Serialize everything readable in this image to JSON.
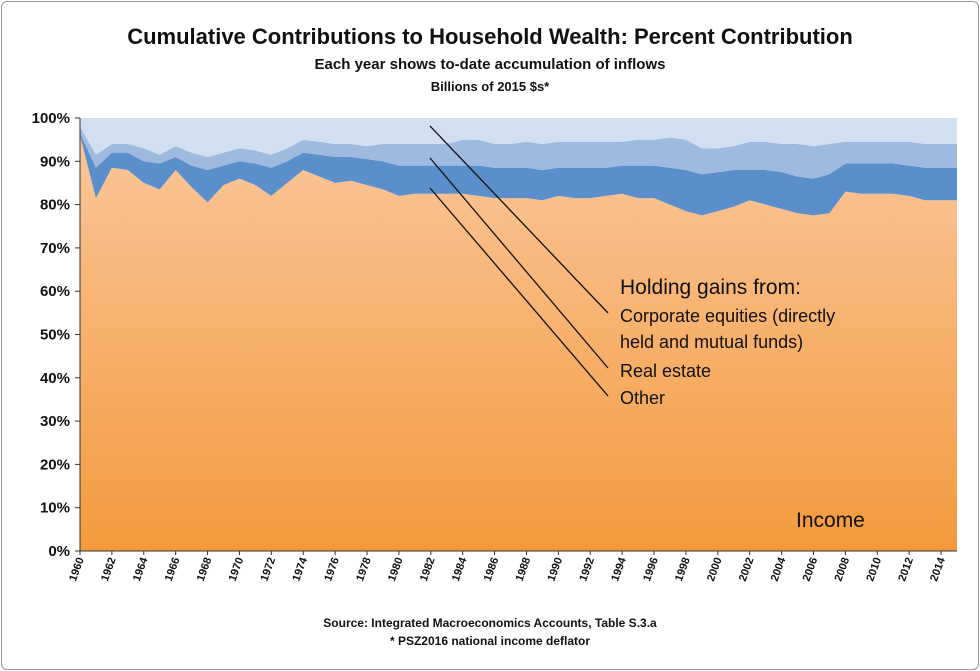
{
  "chart_data": {
    "type": "area",
    "stacked": true,
    "percent": true,
    "title": "Cumulative Contributions to Household Wealth: Percent Contribution",
    "subtitle": "Each year shows to-date accumulation of inflows",
    "subtitle2": "Billions of 2015 $s*",
    "source": "Source: Integrated Macroeconomics Accounts, Table S.3.a",
    "footnote": "* PSZ2016 national income deflator",
    "ylim": [
      0,
      100
    ],
    "y_ticks": [
      "0%",
      "10%",
      "20%",
      "30%",
      "40%",
      "50%",
      "60%",
      "70%",
      "80%",
      "90%",
      "100%"
    ],
    "x_tick_labels": [
      "1960",
      "1962",
      "1964",
      "1966",
      "1968",
      "1970",
      "1972",
      "1974",
      "1976",
      "1978",
      "1980",
      "1982",
      "1984",
      "1986",
      "1988",
      "1990",
      "1992",
      "1994",
      "1996",
      "1998",
      "2000",
      "2002",
      "2004",
      "2006",
      "2008",
      "2010",
      "2012",
      "2014"
    ],
    "x": [
      1960,
      1961,
      1962,
      1963,
      1964,
      1965,
      1966,
      1967,
      1968,
      1969,
      1970,
      1971,
      1972,
      1973,
      1974,
      1975,
      1976,
      1977,
      1978,
      1979,
      1980,
      1981,
      1982,
      1983,
      1984,
      1985,
      1986,
      1987,
      1988,
      1989,
      1990,
      1991,
      1992,
      1993,
      1994,
      1995,
      1996,
      1997,
      1998,
      1999,
      2000,
      2001,
      2002,
      2003,
      2004,
      2005,
      2006,
      2007,
      2008,
      2009,
      2010,
      2011,
      2012,
      2013,
      2014,
      2015
    ],
    "series": [
      {
        "name": "Income",
        "color": "#f5a04e",
        "values": [
          96,
          81.5,
          88.5,
          88,
          85,
          83.5,
          88,
          84,
          80.5,
          84.5,
          86,
          84.5,
          82,
          85,
          88,
          86.5,
          85,
          85.5,
          84.5,
          83.5,
          82,
          82.5,
          82.5,
          82.5,
          82.5,
          82,
          81.5,
          81.5,
          81.5,
          81,
          82,
          81.5,
          81.5,
          82,
          82.5,
          81.5,
          81.5,
          80,
          78.5,
          77.5,
          78.5,
          79.5,
          81,
          80,
          79,
          78,
          77.5,
          78,
          83,
          82.5,
          82.5,
          82.5,
          82,
          81,
          81,
          81
        ]
      },
      {
        "name": "Other",
        "color": "#5b8fcc",
        "values": [
          0.5,
          7,
          3.5,
          4,
          5,
          6,
          3,
          5,
          7.5,
          4.5,
          4,
          5,
          6.5,
          5,
          4,
          5,
          6,
          5.5,
          6,
          6.5,
          7,
          6.5,
          6.5,
          6.5,
          6.5,
          7,
          7,
          7,
          7,
          7,
          6.5,
          7,
          7,
          6.5,
          6.5,
          7.5,
          7.5,
          8.5,
          9.5,
          9.5,
          9,
          8.5,
          7,
          8,
          8.5,
          8.5,
          8.5,
          9,
          6.5,
          7,
          7,
          7,
          7,
          7.5,
          7.5,
          7.5
        ]
      },
      {
        "name": "Real estate",
        "color": "#9fbadf",
        "values": [
          1.5,
          3,
          2,
          2,
          3,
          2,
          2.5,
          3,
          3,
          3,
          3,
          3,
          3,
          3,
          3,
          3,
          3,
          3,
          3,
          4,
          5,
          5,
          5,
          5,
          6,
          6,
          5.5,
          5.5,
          6,
          6,
          6,
          6,
          6,
          6,
          5.5,
          6,
          6,
          7,
          7,
          6,
          5.5,
          5.5,
          6.5,
          6.5,
          6.5,
          7.5,
          7.5,
          7,
          5,
          5,
          5,
          5,
          5.5,
          5.5,
          5.5,
          5.5
        ]
      },
      {
        "name": "Corporate equities (directly held and mutual funds)",
        "color": "#d1dff0",
        "values": [
          2,
          8.5,
          6,
          6,
          7,
          8.5,
          6.5,
          8,
          9,
          8,
          7,
          7.5,
          8.5,
          7,
          5,
          5.5,
          6,
          6,
          6.5,
          6,
          6,
          6,
          6,
          6,
          5,
          5,
          6,
          6,
          5.5,
          6,
          5.5,
          5.5,
          5.5,
          5.5,
          5.5,
          5,
          5,
          4.5,
          5,
          7,
          7,
          6.5,
          5.5,
          5.5,
          6,
          6,
          6.5,
          6,
          5.5,
          5.5,
          5.5,
          5.5,
          5.5,
          6,
          6,
          6
        ]
      }
    ],
    "annotations": {
      "heading": "Holding gains from:",
      "equities_line1": "Corporate equities (directly",
      "equities_line2": "held and mutual funds)",
      "real_estate": "Real estate",
      "other": "Other",
      "income": "Income"
    }
  }
}
